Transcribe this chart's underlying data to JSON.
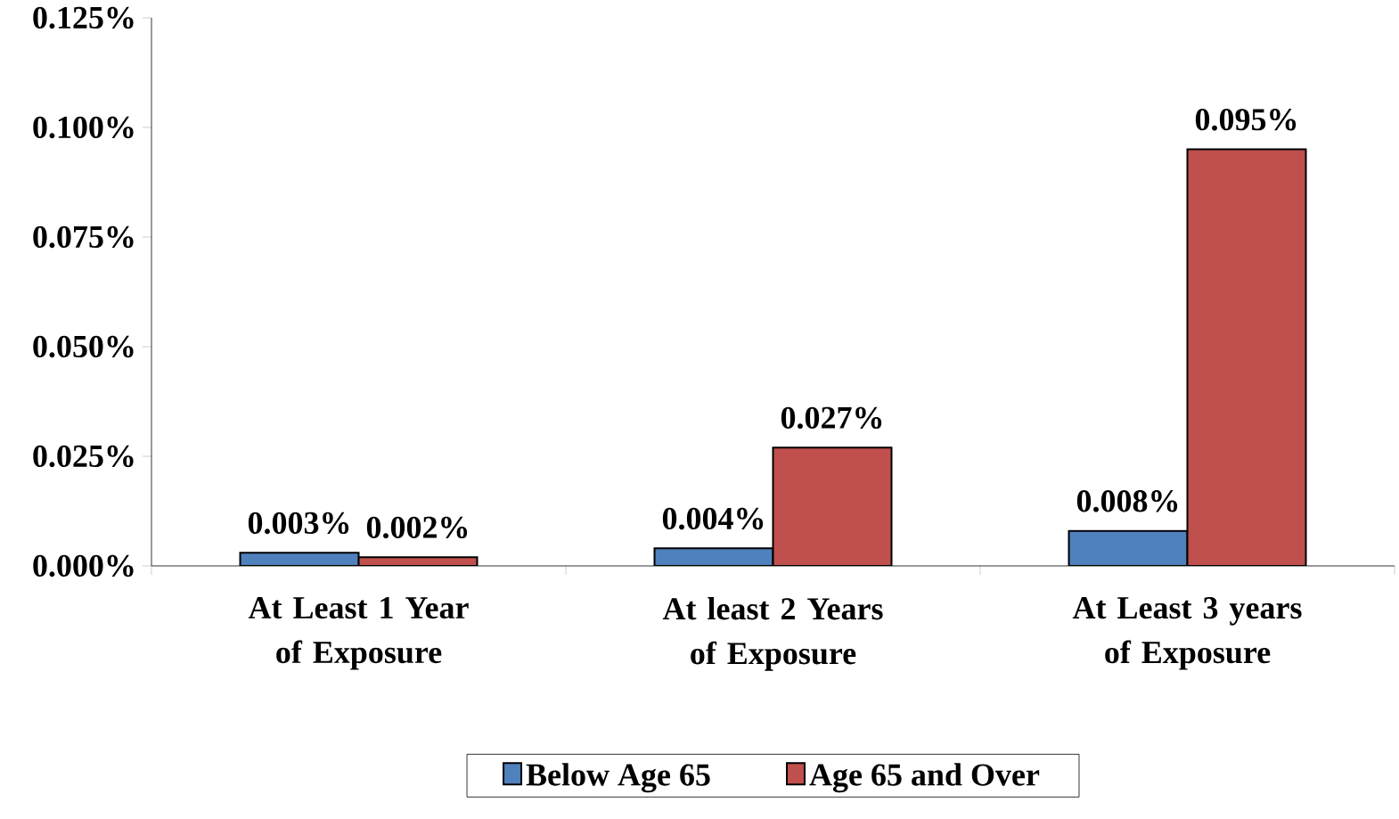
{
  "chart_data": {
    "type": "bar",
    "categories": [
      "At Least 1 Year of Exposure",
      "At least 2 Years of Exposure",
      "At Least 3 years of Exposure"
    ],
    "series": [
      {
        "name": "Below Age 65",
        "color": "#4f81bd",
        "values": [
          0.003,
          0.004,
          0.008
        ],
        "value_labels": [
          "0.003%",
          "0.004%",
          "0.008%"
        ]
      },
      {
        "name": "Age 65 and Over",
        "color": "#c0504d",
        "values": [
          0.002,
          0.027,
          0.095
        ],
        "value_labels": [
          "0.002%",
          "0.027%",
          "0.095%"
        ]
      }
    ],
    "ylim": [
      0,
      0.125
    ],
    "yticks": [
      {
        "value": 0,
        "label": "0.000%"
      },
      {
        "value": 0.025,
        "label": "0.025%"
      },
      {
        "value": 0.05,
        "label": "0.050%"
      },
      {
        "value": 0.075,
        "label": "0.075%"
      },
      {
        "value": 0.1,
        "label": "0.100%"
      },
      {
        "value": 0.125,
        "label": "0.125%"
      }
    ],
    "grid": false,
    "legend": "bottom"
  }
}
